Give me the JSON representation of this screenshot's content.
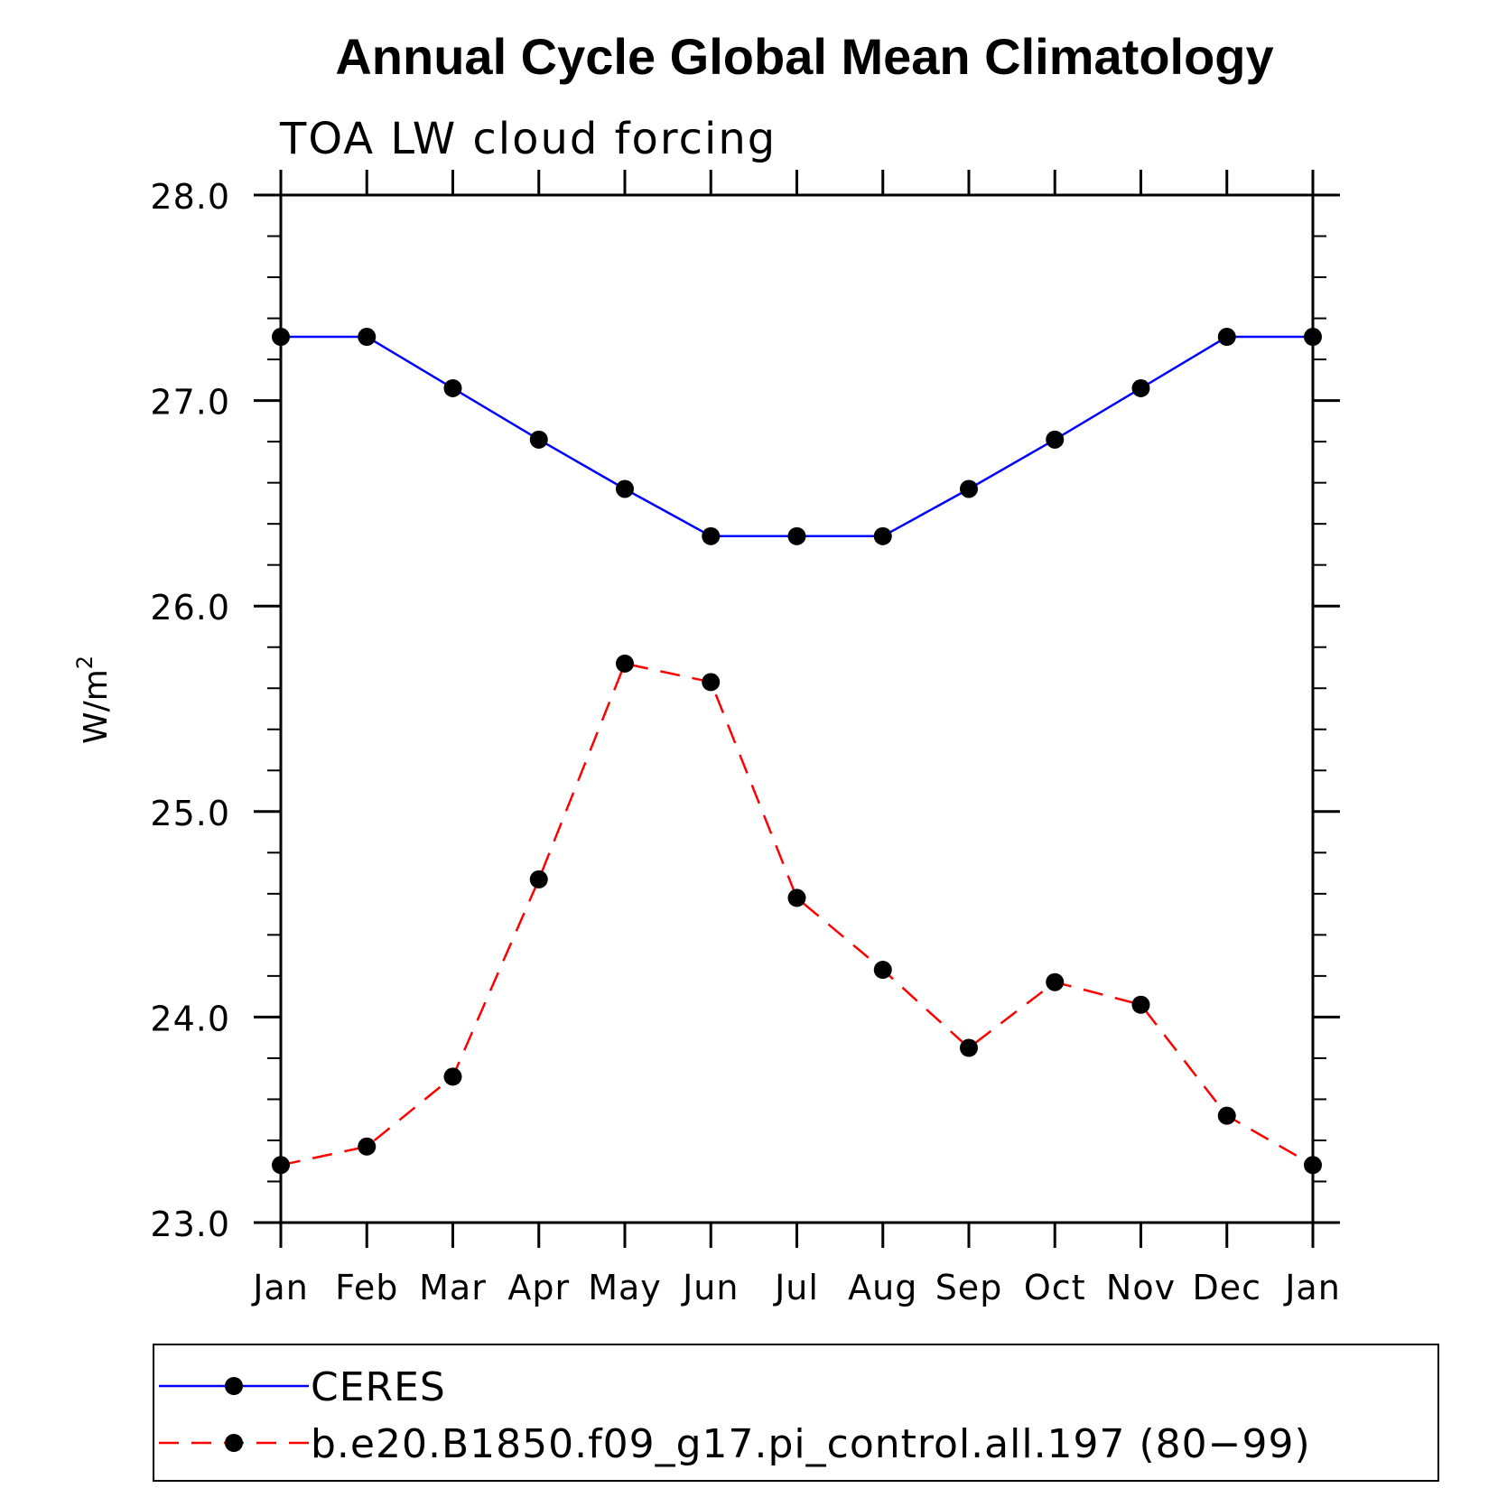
{
  "chart_data": {
    "type": "line",
    "title": "Annual Cycle Global Mean Climatology",
    "subtitle": "TOA LW cloud forcing",
    "ylabel": "W/m",
    "ylabel_superscript": "2",
    "xlabel": "",
    "categories": [
      "Jan",
      "Feb",
      "Mar",
      "Apr",
      "May",
      "Jun",
      "Jul",
      "Aug",
      "Sep",
      "Oct",
      "Nov",
      "Dec",
      "Jan"
    ],
    "ylim": [
      23.0,
      28.0
    ],
    "yticks": [
      "23.0",
      "24.0",
      "25.0",
      "26.0",
      "27.0",
      "28.0"
    ],
    "ytick_values": [
      23.0,
      24.0,
      25.0,
      26.0,
      27.0,
      28.0
    ],
    "grid": false,
    "legend_position": "bottom",
    "series": [
      {
        "name": "CERES",
        "color": "#0000ff",
        "line_style": "solid",
        "marker": "filled-circle",
        "values": [
          27.31,
          27.31,
          27.06,
          26.81,
          26.57,
          26.34,
          26.34,
          26.34,
          26.57,
          26.81,
          27.06,
          27.31,
          27.31
        ]
      },
      {
        "name": "b.e20.B1850.f09_g17.pi_control.all.197 (80−99)",
        "color": "#ff0000",
        "line_style": "dashed",
        "marker": "filled-circle",
        "values": [
          23.28,
          23.37,
          23.71,
          24.67,
          25.72,
          25.63,
          24.58,
          24.23,
          23.85,
          24.17,
          24.06,
          23.52,
          23.28
        ]
      }
    ]
  }
}
